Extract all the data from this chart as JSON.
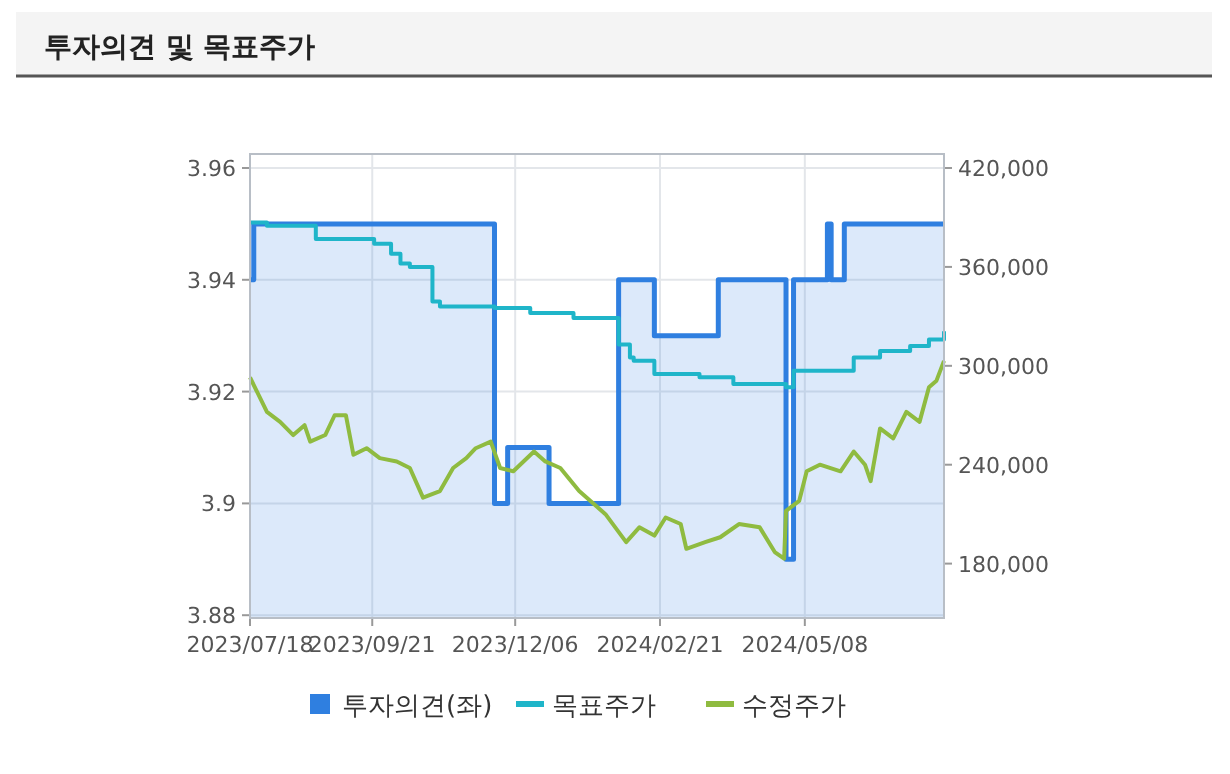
{
  "chart_data": {
    "type": "line",
    "title": "투자의견 및 목표주가",
    "xlim": [
      "2023-07-18",
      "2024-07-21"
    ],
    "xticks": [
      {
        "value": "2023-07-18",
        "label": "2023/07/18"
      },
      {
        "value": "2023-09-21",
        "label": "2023/09/21"
      },
      {
        "value": "2023-12-06",
        "label": "2023/12/06"
      },
      {
        "value": "2024-02-21",
        "label": "2024/02/21"
      },
      {
        "value": "2024-05-08",
        "label": "2024/05/08"
      }
    ],
    "ylim": [
      3.8795,
      3.9625
    ],
    "yticks": [
      3.88,
      3.9,
      3.92,
      3.94,
      3.96
    ],
    "y2lim": [
      147000,
      428500
    ],
    "y2ticks": [
      {
        "value": 180000,
        "label": "180,000"
      },
      {
        "value": 240000,
        "label": "240,000"
      },
      {
        "value": 300000,
        "label": "300,000"
      },
      {
        "value": 360000,
        "label": "360,000"
      },
      {
        "value": 420000,
        "label": "420,000"
      }
    ],
    "grid": true,
    "legend": "bottom",
    "series": [
      {
        "name": "투자의견(좌)",
        "type": "area",
        "color": "#2f7fe0",
        "x": [
          "2023-07-18",
          "2023-07-20",
          "2023-07-20",
          "2023-11-25",
          "2023-11-25",
          "2023-12-02",
          "2023-12-02",
          "2023-12-24",
          "2023-12-24",
          "2024-01-30",
          "2024-01-30",
          "2024-02-18",
          "2024-02-18",
          "2024-03-23",
          "2024-03-23",
          "2024-04-28",
          "2024-04-28",
          "2024-05-02",
          "2024-05-02",
          "2024-05-20",
          "2024-05-20",
          "2024-05-22",
          "2024-05-22",
          "2024-05-29",
          "2024-05-29",
          "2024-07-21"
        ],
        "values": [
          3.94,
          3.94,
          3.95,
          3.95,
          3.9,
          3.9,
          3.91,
          3.91,
          3.9,
          3.9,
          3.94,
          3.94,
          3.93,
          3.93,
          3.94,
          3.94,
          3.89,
          3.89,
          3.94,
          3.94,
          3.95,
          3.95,
          3.94,
          3.94,
          3.95,
          3.95
        ]
      },
      {
        "name": "목표주가",
        "type": "step",
        "axis": "y2",
        "color": "#1fb5c9",
        "x": [
          "2023-07-18",
          "2023-07-27",
          "2023-08-22",
          "2023-09-22",
          "2023-10-01",
          "2023-10-06",
          "2023-10-11",
          "2023-10-23",
          "2023-10-27",
          "2023-11-25",
          "2023-12-14",
          "2024-01-06",
          "2024-01-30",
          "2024-02-05",
          "2024-02-07",
          "2024-02-18",
          "2024-03-13",
          "2024-03-31",
          "2024-04-28",
          "2024-05-02",
          "2024-06-03",
          "2024-06-17",
          "2024-07-03",
          "2024-07-13",
          "2024-07-21"
        ],
        "values": [
          387000,
          385000,
          377000,
          374000,
          368000,
          362000,
          360000,
          339000,
          336000,
          335000,
          332000,
          329000,
          313000,
          305000,
          303000,
          295000,
          293000,
          289000,
          287000,
          297000,
          305000,
          309000,
          312000,
          316000,
          321000
        ]
      },
      {
        "name": "수정주가",
        "axis": "y2",
        "color": "#8fbb40",
        "x": [
          "2023-07-18",
          "2023-07-27",
          "2023-08-03",
          "2023-08-10",
          "2023-08-16",
          "2023-08-19",
          "2023-08-27",
          "2023-09-01",
          "2023-09-07",
          "2023-09-11",
          "2023-09-18",
          "2023-09-25",
          "2023-10-04",
          "2023-10-11",
          "2023-10-18",
          "2023-10-27",
          "2023-11-03",
          "2023-11-10",
          "2023-11-15",
          "2023-11-23",
          "2023-11-28",
          "2023-12-05",
          "2023-12-16",
          "2023-12-22",
          "2023-12-30",
          "2024-01-09",
          "2024-01-23",
          "2024-02-03",
          "2024-02-10",
          "2024-02-18",
          "2024-02-24",
          "2024-03-03",
          "2024-03-06",
          "2024-03-16",
          "2024-03-24",
          "2024-04-03",
          "2024-04-14",
          "2024-04-22",
          "2024-04-27",
          "2024-04-28",
          "2024-05-05",
          "2024-05-09",
          "2024-05-16",
          "2024-05-27",
          "2024-06-03",
          "2024-06-09",
          "2024-06-12",
          "2024-06-17",
          "2024-06-24",
          "2024-07-01",
          "2024-07-08",
          "2024-07-13",
          "2024-07-17",
          "2024-07-21"
        ],
        "values": [
          293000,
          272000,
          266000,
          258000,
          264000,
          254000,
          258000,
          270000,
          270000,
          246000,
          250000,
          244000,
          242000,
          238000,
          220000,
          224000,
          238000,
          244000,
          250000,
          254000,
          238000,
          236000,
          248000,
          242000,
          238000,
          224000,
          210000,
          193000,
          202000,
          197000,
          208000,
          204000,
          189000,
          193000,
          196000,
          204000,
          202000,
          187000,
          183000,
          212000,
          218000,
          236000,
          240000,
          236000,
          248000,
          240000,
          230000,
          262000,
          256000,
          272000,
          266000,
          287000,
          291000,
          303000
        ]
      }
    ]
  }
}
